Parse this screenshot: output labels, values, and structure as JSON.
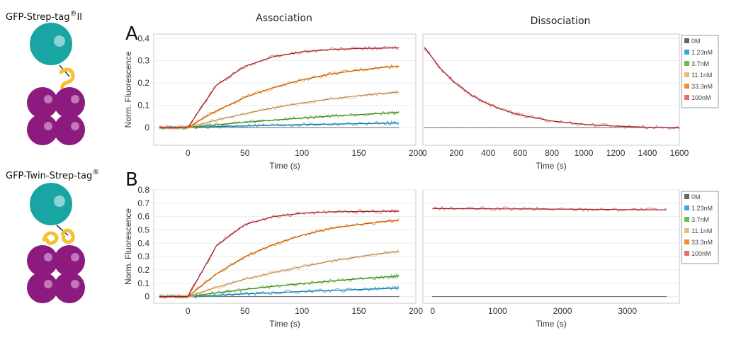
{
  "row_titles": {
    "A": {
      "construct": "GFP-Strep-tag",
      "sup": "®",
      "suffix": "II"
    },
    "B": {
      "construct": "GFP-Twin-Strep-tag",
      "sup": "®",
      "suffix": ""
    }
  },
  "panel_letters": [
    "A",
    "B"
  ],
  "column_titles": {
    "association": "Association",
    "dissociation": "Dissociation"
  },
  "colors": {
    "protein_head": "#1aa5a5",
    "streptactin": "#8c1a7f",
    "tag": "#f4c030",
    "series": {
      "0M": "#666666",
      "1.23nM": "#3aa6dc",
      "3.7nM": "#6db94a",
      "11.1nM": "#edb983",
      "33.3nM": "#f28d2e",
      "100nM": "#e07070"
    },
    "fit": "#9a1f2a"
  },
  "chart_data": [
    {
      "id": "A-association",
      "type": "line",
      "title": "Association",
      "xlabel": "Time (s)",
      "ylabel": "Norm. Fluorescence",
      "xlim": [
        -30,
        200
      ],
      "ylim": [
        -0.08,
        0.42
      ],
      "grid": true,
      "xticks": [
        0,
        50,
        100,
        150,
        200
      ],
      "yticks": [
        0,
        0.1,
        0.2,
        0.3,
        0.4
      ],
      "x": [
        -25,
        0,
        25,
        50,
        75,
        100,
        125,
        150,
        175,
        185
      ],
      "series": [
        {
          "name": "0M",
          "values": [
            0,
            0,
            0,
            0,
            0,
            0,
            0,
            0,
            0,
            0
          ]
        },
        {
          "name": "1.23nM",
          "values": [
            0,
            0,
            0.004,
            0.007,
            0.01,
            0.013,
            0.015,
            0.017,
            0.019,
            0.02
          ]
        },
        {
          "name": "3.7nM",
          "values": [
            0,
            0,
            0.012,
            0.023,
            0.033,
            0.042,
            0.051,
            0.058,
            0.065,
            0.068
          ]
        },
        {
          "name": "11.1nM",
          "values": [
            0,
            0,
            0.033,
            0.062,
            0.088,
            0.11,
            0.128,
            0.143,
            0.155,
            0.159
          ]
        },
        {
          "name": "33.3nM",
          "values": [
            0,
            0,
            0.075,
            0.135,
            0.18,
            0.214,
            0.24,
            0.258,
            0.272,
            0.276
          ]
        },
        {
          "name": "100nM",
          "values": [
            0,
            0,
            0.19,
            0.275,
            0.318,
            0.34,
            0.35,
            0.355,
            0.357,
            0.358
          ]
        }
      ]
    },
    {
      "id": "A-dissociation",
      "type": "line",
      "title": "Dissociation",
      "xlabel": "Time (s)",
      "ylabel": "",
      "xlim": [
        -10,
        1600
      ],
      "ylim": [
        -0.08,
        0.42
      ],
      "grid": true,
      "xticks": [
        0,
        200,
        400,
        600,
        800,
        1000,
        1200,
        1400,
        1600
      ],
      "yticks": [],
      "x": [
        0,
        100,
        200,
        300,
        400,
        500,
        600,
        800,
        1000,
        1200,
        1400,
        1600
      ],
      "series": [
        {
          "name": "0M",
          "values": [
            0,
            0,
            0,
            0,
            0,
            0,
            0,
            0,
            0,
            0,
            0,
            0
          ]
        },
        {
          "name": "100nM",
          "values": [
            0.36,
            0.265,
            0.195,
            0.143,
            0.105,
            0.077,
            0.056,
            0.029,
            0.014,
            0.006,
            0.001,
            -0.002
          ]
        }
      ],
      "legend": [
        "0M",
        "1.23nM",
        "3.7nM",
        "11.1nM",
        "33.3nM",
        "100nM"
      ]
    },
    {
      "id": "B-association",
      "type": "line",
      "title": "",
      "xlabel": "Time (s)",
      "ylabel": "Norm. Fluorescence",
      "xlim": [
        -30,
        200
      ],
      "ylim": [
        -0.05,
        0.8
      ],
      "grid": true,
      "xticks": [
        0,
        50,
        100,
        150,
        200
      ],
      "yticks": [
        0,
        0.1,
        0.2,
        0.3,
        0.4,
        0.5,
        0.6,
        0.7,
        0.8
      ],
      "x": [
        -25,
        0,
        25,
        50,
        75,
        100,
        125,
        150,
        175,
        185
      ],
      "series": [
        {
          "name": "0M",
          "values": [
            0,
            0,
            0,
            0,
            0,
            0,
            0,
            0,
            0,
            0
          ]
        },
        {
          "name": "1.23nM",
          "values": [
            0,
            0,
            0.01,
            0.02,
            0.029,
            0.038,
            0.046,
            0.053,
            0.06,
            0.063
          ]
        },
        {
          "name": "3.7nM",
          "values": [
            0,
            0,
            0.028,
            0.054,
            0.077,
            0.097,
            0.116,
            0.133,
            0.148,
            0.154
          ]
        },
        {
          "name": "11.1nM",
          "values": [
            0,
            0,
            0.07,
            0.13,
            0.18,
            0.225,
            0.265,
            0.3,
            0.33,
            0.34
          ]
        },
        {
          "name": "33.3nM",
          "values": [
            0,
            0,
            0.17,
            0.3,
            0.39,
            0.46,
            0.51,
            0.54,
            0.565,
            0.572
          ]
        },
        {
          "name": "100nM",
          "values": [
            0,
            0,
            0.38,
            0.54,
            0.6,
            0.625,
            0.635,
            0.638,
            0.64,
            0.64
          ]
        }
      ]
    },
    {
      "id": "B-dissociation",
      "type": "line",
      "title": "",
      "xlabel": "Time (s)",
      "ylabel": "",
      "xlim": [
        -150,
        3800
      ],
      "ylim": [
        -0.05,
        0.8
      ],
      "grid": true,
      "xticks": [
        0,
        1000,
        2000,
        3000
      ],
      "yticks": [],
      "x": [
        0,
        500,
        1000,
        1500,
        2000,
        2500,
        3000,
        3600
      ],
      "series": [
        {
          "name": "0M",
          "values": [
            0,
            0,
            0,
            0,
            0,
            0,
            0,
            0
          ]
        },
        {
          "name": "100nM",
          "values": [
            0.66,
            0.659,
            0.658,
            0.657,
            0.655,
            0.654,
            0.652,
            0.65
          ]
        }
      ],
      "legend": [
        "0M",
        "1.23nM",
        "3.7nM",
        "11.1nM",
        "33.3nM",
        "100nM"
      ]
    }
  ]
}
